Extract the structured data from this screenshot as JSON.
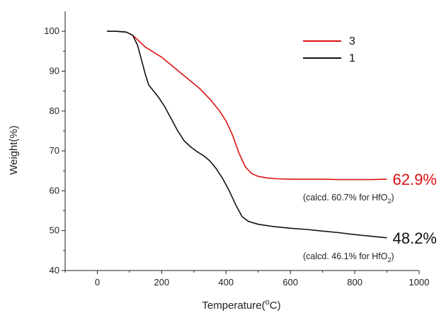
{
  "chart_data": {
    "type": "line",
    "xlabel": "Temperature",
    "xlabel_unit": "(°C)",
    "ylabel": "Weight(%)",
    "xlim": [
      -100,
      1000
    ],
    "ylim": [
      40,
      105
    ],
    "xticks": [
      0,
      200,
      400,
      600,
      800,
      1000
    ],
    "yticks": [
      40,
      50,
      60,
      70,
      80,
      90,
      100
    ],
    "grid": false,
    "legend": "top-right",
    "series": [
      {
        "name": "3",
        "color": "#dd1111",
        "x": [
          30,
          60,
          90,
          110,
          130,
          150,
          170,
          200,
          230,
          260,
          290,
          320,
          350,
          380,
          400,
          420,
          440,
          460,
          480,
          500,
          530,
          560,
          600,
          650,
          700,
          750,
          800,
          850,
          900
        ],
        "y": [
          100,
          100,
          99.8,
          99,
          97.5,
          96,
          95,
          93.5,
          91.5,
          89.5,
          87.5,
          85.5,
          83,
          80,
          77.5,
          74,
          69.5,
          66,
          64.3,
          63.6,
          63.2,
          63,
          62.9,
          62.9,
          62.9,
          62.8,
          62.8,
          62.8,
          62.9
        ],
        "end_label": "62.9%",
        "annotation": "(calcd. 60.7% for HfO",
        "annotation_sub": "2",
        "annotation_end": ")"
      },
      {
        "name": "1",
        "color": "#111111",
        "x": [
          30,
          60,
          90,
          110,
          125,
          140,
          150,
          160,
          170,
          190,
          210,
          230,
          250,
          270,
          290,
          310,
          330,
          350,
          370,
          390,
          410,
          430,
          450,
          470,
          500,
          550,
          600,
          650,
          700,
          750,
          800,
          850,
          900
        ],
        "y": [
          100,
          100,
          99.8,
          99,
          96.5,
          92,
          89,
          86.5,
          85.5,
          83.5,
          81,
          78,
          75,
          72.5,
          71,
          69.8,
          68.8,
          67.5,
          65.5,
          63,
          60,
          56.5,
          53.5,
          52.3,
          51.6,
          51,
          50.6,
          50.3,
          49.9,
          49.5,
          49,
          48.6,
          48.2
        ],
        "end_label": "48.2%",
        "annotation": "(calcd. 46.1% for HfO",
        "annotation_sub": "2",
        "annotation_end": ")"
      }
    ]
  }
}
